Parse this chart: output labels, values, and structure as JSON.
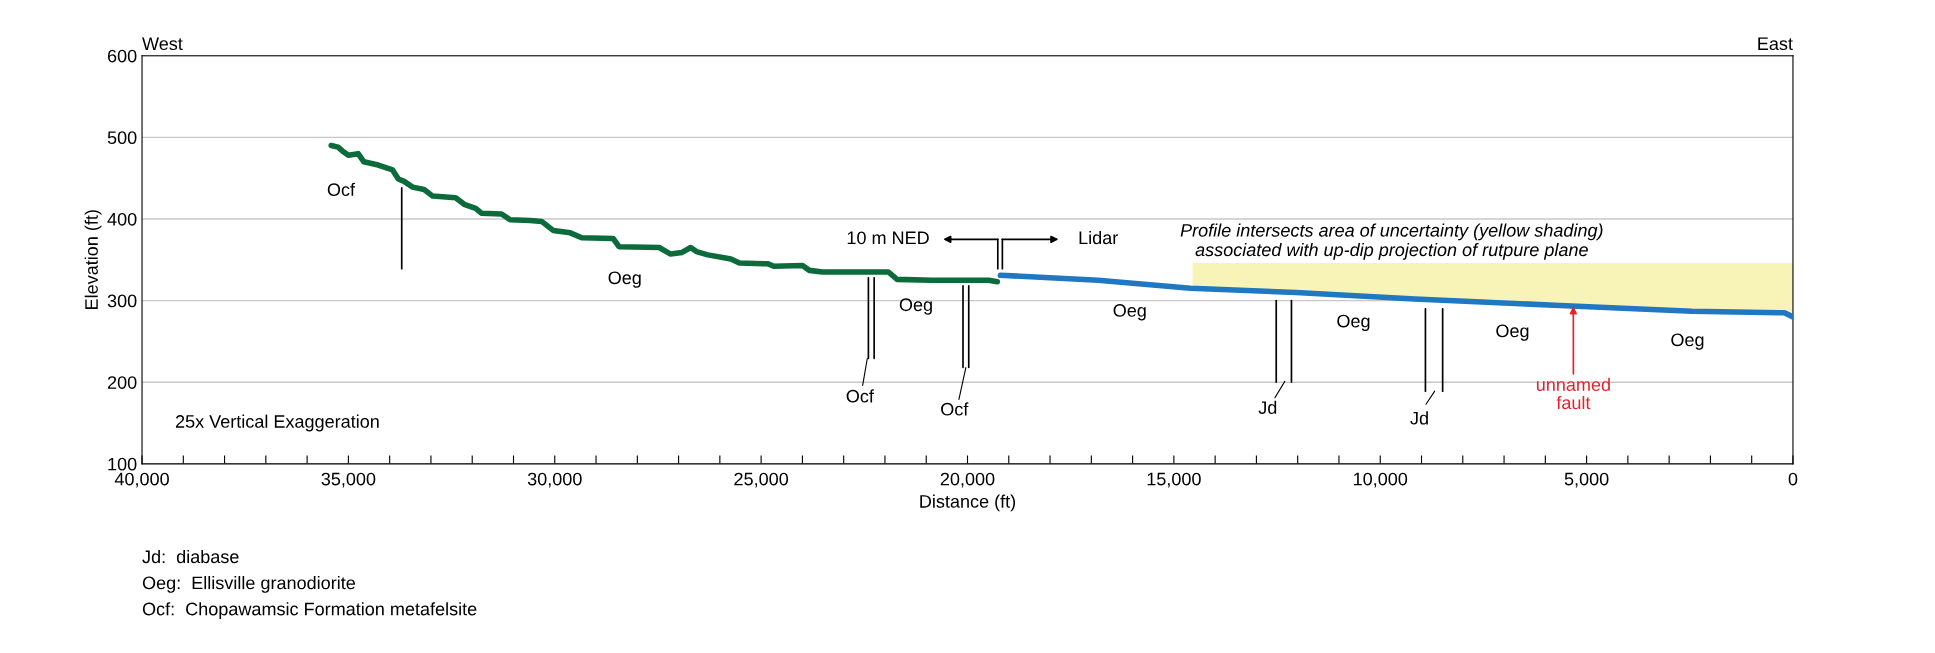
{
  "chart_data": {
    "type": "line",
    "xlabel": "Distance (ft)",
    "ylabel": "Elevation (ft)",
    "xlim": [
      40000,
      0
    ],
    "ylim": [
      100,
      600
    ],
    "xticks": [
      {
        "value": 40000,
        "label": "40,000"
      },
      {
        "value": 39000,
        "label": null
      },
      {
        "value": 38000,
        "label": null
      },
      {
        "value": 37000,
        "label": null
      },
      {
        "value": 36000,
        "label": null
      },
      {
        "value": 35000,
        "label": "35,000"
      },
      {
        "value": 34000,
        "label": null
      },
      {
        "value": 33000,
        "label": null
      },
      {
        "value": 32000,
        "label": null
      },
      {
        "value": 31000,
        "label": null
      },
      {
        "value": 30000,
        "label": "30,000"
      },
      {
        "value": 29000,
        "label": null
      },
      {
        "value": 28000,
        "label": null
      },
      {
        "value": 27000,
        "label": null
      },
      {
        "value": 26000,
        "label": null
      },
      {
        "value": 25000,
        "label": "25,000"
      },
      {
        "value": 24000,
        "label": null
      },
      {
        "value": 23000,
        "label": null
      },
      {
        "value": 22000,
        "label": null
      },
      {
        "value": 21000,
        "label": null
      },
      {
        "value": 20000,
        "label": "20,000"
      },
      {
        "value": 19000,
        "label": null
      },
      {
        "value": 18000,
        "label": null
      },
      {
        "value": 17000,
        "label": null
      },
      {
        "value": 16000,
        "label": null
      },
      {
        "value": 15000,
        "label": "15,000"
      },
      {
        "value": 14000,
        "label": null
      },
      {
        "value": 13000,
        "label": null
      },
      {
        "value": 12000,
        "label": null
      },
      {
        "value": 11000,
        "label": null
      },
      {
        "value": 10000,
        "label": "10,000"
      },
      {
        "value": 9000,
        "label": null
      },
      {
        "value": 8000,
        "label": null
      },
      {
        "value": 7000,
        "label": null
      },
      {
        "value": 6000,
        "label": null
      },
      {
        "value": 5000,
        "label": "5,000"
      },
      {
        "value": 4000,
        "label": null
      },
      {
        "value": 3000,
        "label": null
      },
      {
        "value": 2000,
        "label": null
      },
      {
        "value": 1000,
        "label": null
      },
      {
        "value": 0,
        "label": "0"
      }
    ],
    "yticks": [
      100,
      200,
      300,
      400,
      500,
      600
    ],
    "grid": "y",
    "marker": "none",
    "line_style": "solid",
    "series": [
      {
        "type": "area",
        "color": "#f8f4b8",
        "x": [
          14549,
          12040,
          9159,
          5644,
          2447,
          206,
          0
        ],
        "values": [
          346,
          346,
          346,
          346,
          346,
          346,
          346
        ]
      },
      {
        "color": "#0b6b3a",
        "x": [
          35417,
          35250,
          35111,
          35000,
          34764,
          34625,
          34278,
          33930,
          33790,
          33650,
          33444,
          33166,
          32958,
          32402,
          32194,
          31916,
          31777,
          31290,
          31082,
          30596,
          30318,
          30040,
          29624,
          29346,
          28582,
          28443,
          27470,
          27193,
          26915,
          26707,
          26568,
          26290,
          25734,
          25526,
          24832,
          24693,
          23998,
          23832,
          23512,
          21915,
          21707,
          20874,
          19485,
          19277
        ],
        "values": [
          490,
          488,
          482,
          478,
          480,
          470,
          466,
          460,
          449,
          446,
          439,
          436,
          428,
          426,
          418,
          413,
          407,
          406,
          399,
          398,
          397,
          386,
          383,
          377,
          376,
          366,
          365,
          357,
          359,
          365,
          360,
          356,
          351,
          346,
          345,
          342,
          343,
          337,
          335,
          335,
          326,
          325,
          325,
          323
        ]
      },
      {
        "color": "#1f78c1",
        "x": [
          19203,
          16836,
          14598,
          12040,
          9159,
          5644,
          2447,
          206,
          0
        ],
        "values": [
          331,
          325,
          315,
          310,
          302,
          294,
          287,
          285,
          280
        ]
      },
      {
        "color": "#000000",
        "x": [
          33708,
          33708
        ],
        "values": [
          438,
          339
        ]
      },
      {
        "color": "#000000",
        "x": [
          22401,
          22401
        ],
        "values": [
          328,
          229
        ]
      },
      {
        "color": "#000000",
        "x": [
          22262,
          22262
        ],
        "values": [
          328,
          229
        ]
      },
      {
        "color": "#000000",
        "x": [
          20109,
          20109
        ],
        "values": [
          318,
          218
        ]
      },
      {
        "color": "#000000",
        "x": [
          19970,
          19970
        ],
        "values": [
          318,
          218
        ]
      },
      {
        "color": "#000000",
        "x": [
          12520,
          12520
        ],
        "values": [
          300,
          200
        ]
      },
      {
        "color": "#000000",
        "x": [
          12151,
          12151
        ],
        "values": [
          300,
          200
        ]
      },
      {
        "color": "#000000",
        "x": [
          8905,
          8905
        ],
        "values": [
          290,
          189
        ]
      },
      {
        "color": "#000000",
        "x": [
          8488,
          8488
        ],
        "values": [
          290,
          189
        ]
      },
      {
        "color": "#000000",
        "x": [
          19266,
          19266
        ],
        "values": [
          375,
          339
        ]
      },
      {
        "color": "#000000",
        "x": [
          19155,
          19155
        ],
        "values": [
          375,
          339
        ]
      }
    ],
    "annotations": [
      "West",
      "East",
      "25x Vertical Exaggeration",
      "Profile intersects area of uncertainty (yellow shading)\nassociated with up-dip projection of rutpure plane",
      "10 m NED",
      "Lidar",
      {
        "text": "unnamed\nfault",
        "x": 5322,
        "y": 293
      },
      "Ocf",
      "Ocf",
      "Jd",
      "Jd",
      "Ocf",
      "Oeg",
      "Oeg",
      "Oeg",
      "Oeg",
      "Oeg",
      "Oeg",
      "Jd:  diabase",
      "Oeg:  Ellisville granodiorite",
      "Ocf:  Chopawamsic Formation metafelsite"
    ]
  }
}
